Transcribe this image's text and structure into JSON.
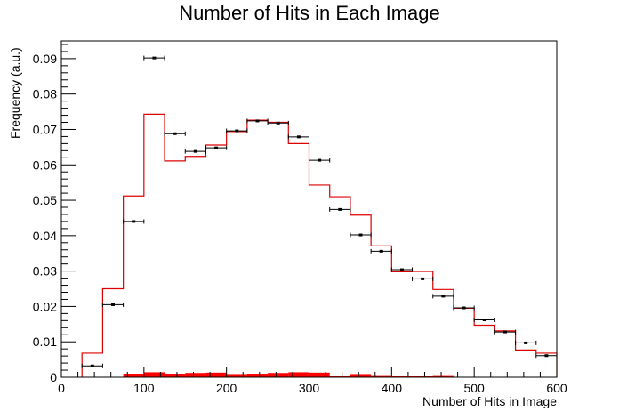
{
  "chart_data": {
    "type": "histogram",
    "title": "Number of Hits in Each Image",
    "xlabel": "Number of Hits in Image",
    "ylabel": "Frequency (a.u.)",
    "xlim": [
      0,
      600
    ],
    "ylim": [
      0,
      0.095
    ],
    "x_ticks": [
      0,
      100,
      200,
      300,
      400,
      500,
      600
    ],
    "y_ticks": [
      0,
      0.01,
      0.02,
      0.03,
      0.04,
      0.05,
      0.06,
      0.07,
      0.08,
      0.09
    ],
    "x_tick_labels": [
      "0",
      "100",
      "200",
      "300",
      "400",
      "500",
      "600"
    ],
    "y_tick_labels": [
      "0",
      "0.01",
      "0.02",
      "0.03",
      "0.04",
      "0.05",
      "0.06",
      "0.07",
      "0.08",
      "0.09"
    ],
    "grid": false,
    "legend": null,
    "series": [
      {
        "style": "points-with-xerr",
        "color": "#000000",
        "x": [
          37.5,
          62.5,
          87.5,
          112.5,
          137.5,
          162.5,
          187.5,
          212.5,
          237.5,
          262.5,
          287.5,
          312.5,
          337.5,
          362.5,
          387.5,
          412.5,
          437.5,
          462.5,
          487.5,
          512.5,
          537.5,
          562.5,
          587.5
        ],
        "y": [
          0.0032,
          0.0205,
          0.044,
          0.0902,
          0.0688,
          0.0638,
          0.0648,
          0.0696,
          0.0724,
          0.0718,
          0.0679,
          0.0613,
          0.0474,
          0.0402,
          0.0356,
          0.0304,
          0.0278,
          0.0229,
          0.0196,
          0.0162,
          0.0128,
          0.0097,
          0.0061
        ],
        "xerr": 12.5
      },
      {
        "style": "step",
        "color": "#dd0000",
        "bin_edges": [
          25,
          50,
          75,
          100,
          125,
          150,
          175,
          200,
          225,
          250,
          275,
          300,
          325,
          350,
          375,
          400,
          425,
          450,
          475,
          500,
          525,
          550,
          575,
          600
        ],
        "values": [
          0.0068,
          0.025,
          0.0512,
          0.0743,
          0.0611,
          0.0624,
          0.0656,
          0.0694,
          0.0726,
          0.072,
          0.066,
          0.0543,
          0.051,
          0.0458,
          0.0371,
          0.0298,
          0.0299,
          0.0248,
          0.0195,
          0.0147,
          0.0131,
          0.0077,
          0.0068
        ]
      },
      {
        "style": "filled-bars",
        "color": "#ff0000",
        "bin_edges": [
          75,
          100,
          125,
          150,
          175,
          200,
          225,
          250,
          275,
          300,
          325,
          350,
          375,
          400,
          425,
          450,
          475
        ],
        "values": [
          0.001,
          0.0014,
          0.001,
          0.0012,
          0.0013,
          0.0009,
          0.001,
          0.0012,
          0.0014,
          0.0013,
          0.0005,
          0.0009,
          0.0006,
          0.0005,
          0.0003,
          0.0006,
          0.0004
        ]
      }
    ]
  }
}
